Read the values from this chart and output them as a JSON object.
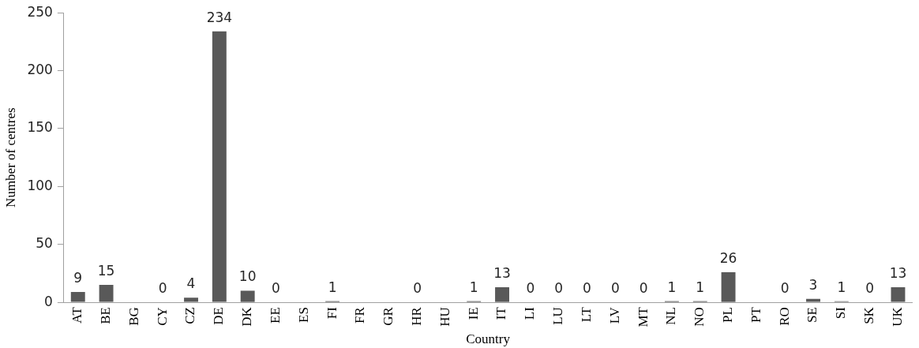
{
  "chart_data": {
    "type": "bar",
    "xlabel": "Country",
    "ylabel": "Number of centres",
    "categories": [
      "AT",
      "BE",
      "BG",
      "CY",
      "CZ",
      "DE",
      "DK",
      "EE",
      "ES",
      "FI",
      "FR",
      "GR",
      "HR",
      "HU",
      "IE",
      "IT",
      "LI",
      "LU",
      "LT",
      "LV",
      "MT",
      "NL",
      "NO",
      "PL",
      "PT",
      "RO",
      "SE",
      "SI",
      "SK",
      "UK"
    ],
    "values": [
      9,
      15,
      null,
      0,
      4,
      234,
      10,
      0,
      null,
      1,
      null,
      null,
      0,
      null,
      1,
      13,
      0,
      0,
      0,
      0,
      0,
      1,
      1,
      26,
      null,
      0,
      3,
      1,
      0,
      13
    ],
    "color": "#595959",
    "ylim": [
      0,
      250
    ],
    "yticks": [
      0,
      50,
      100,
      150,
      200,
      250
    ],
    "grid": false,
    "legend": false,
    "data_labels": true
  }
}
